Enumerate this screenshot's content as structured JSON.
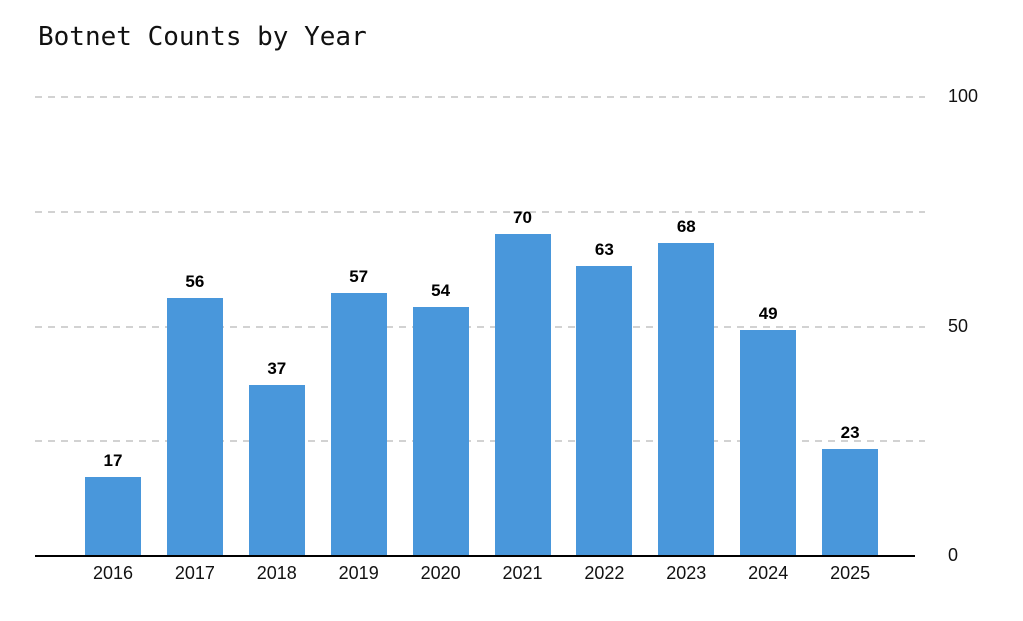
{
  "title": "Botnet Counts by Year",
  "colors": {
    "bar": "#4997DB",
    "gridline": "#d2d2d2",
    "axis": "#000000",
    "text": "#111111"
  },
  "chart_data": {
    "type": "bar",
    "title": "Botnet Counts by Year",
    "categories": [
      "2016",
      "2017",
      "2018",
      "2019",
      "2020",
      "2021",
      "2022",
      "2023",
      "2024",
      "2025"
    ],
    "values": [
      17,
      56,
      37,
      57,
      54,
      70,
      63,
      68,
      49,
      23
    ],
    "xlabel": "",
    "ylabel": "",
    "ylim": [
      0,
      100
    ],
    "ytick_labels": [
      100,
      50,
      0
    ],
    "gridline_values": [
      25,
      50,
      75,
      100
    ],
    "grid": "horizontal-dashed",
    "legend_position": "none",
    "bar_labels_shown": true,
    "ytick_side": "right"
  }
}
